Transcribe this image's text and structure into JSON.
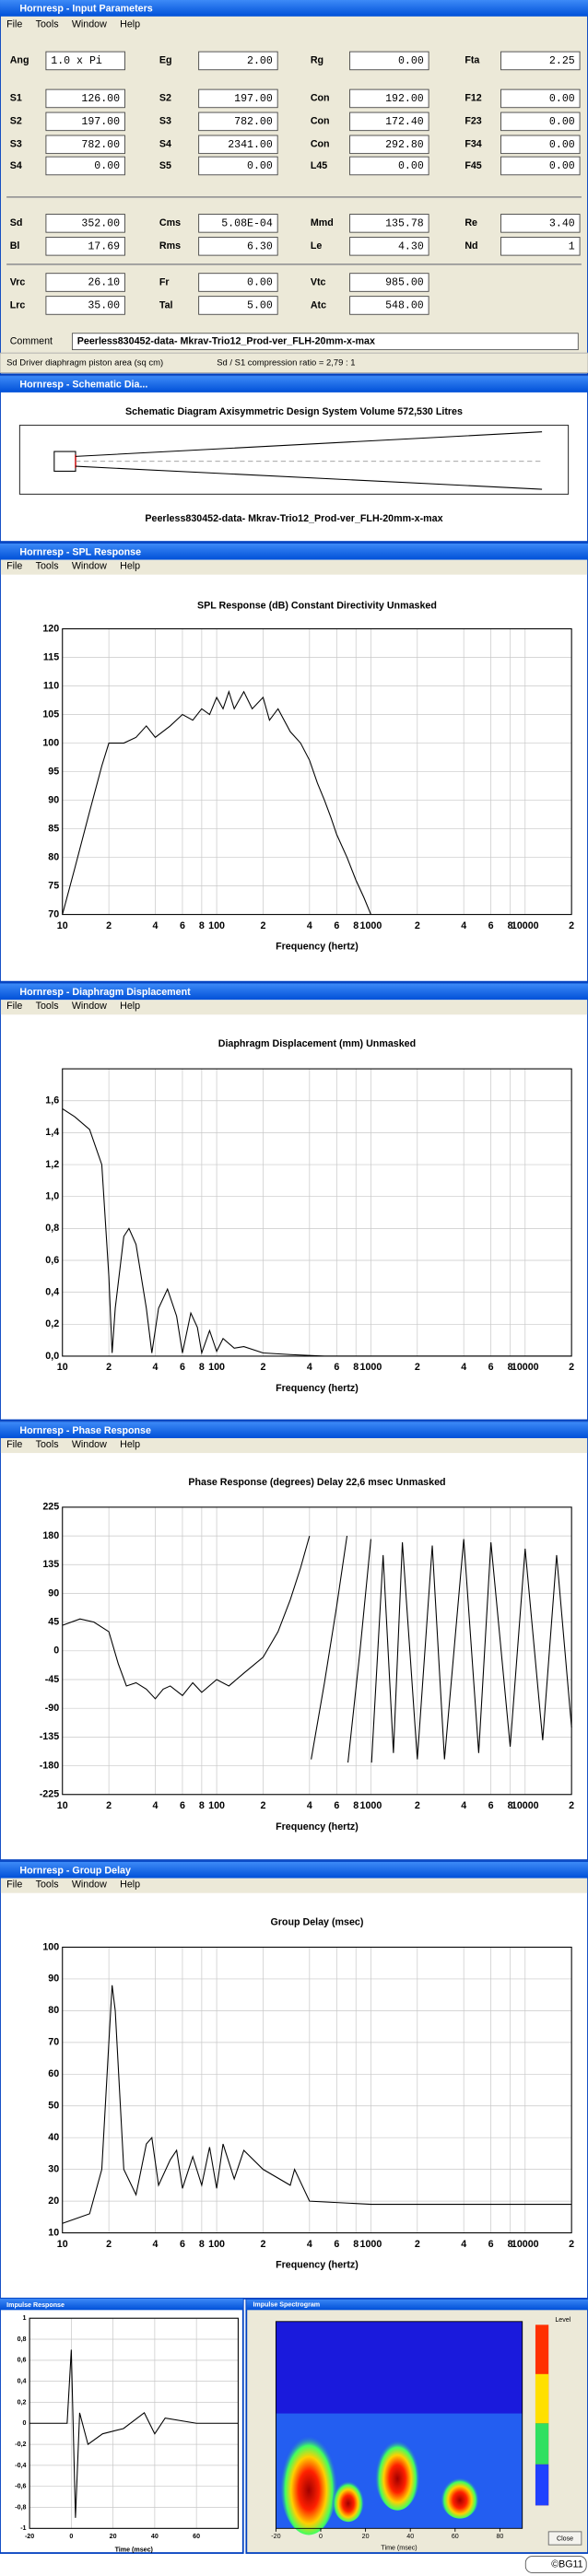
{
  "input_window": {
    "title": "Hornresp - Input Parameters",
    "menu": [
      "File",
      "Tools",
      "Window",
      "Help"
    ],
    "rows": [
      [
        {
          "label": "Ang",
          "value": "1.0 x Pi"
        },
        {
          "label": "Eg",
          "value": "2.00"
        },
        {
          "label": "Rg",
          "value": "0.00"
        },
        {
          "label": "Fta",
          "value": "2.25"
        }
      ],
      [
        {
          "label": "S1",
          "value": "126.00"
        },
        {
          "label": "S2",
          "value": "197.00"
        },
        {
          "label": "Con",
          "value": "192.00"
        },
        {
          "label": "F12",
          "value": "0.00"
        }
      ],
      [
        {
          "label": "S2",
          "value": "197.00"
        },
        {
          "label": "S3",
          "value": "782.00"
        },
        {
          "label": "Con",
          "value": "172.40"
        },
        {
          "label": "F23",
          "value": "0.00"
        }
      ],
      [
        {
          "label": "S3",
          "value": "782.00"
        },
        {
          "label": "S4",
          "value": "2341.00"
        },
        {
          "label": "Con",
          "value": "292.80"
        },
        {
          "label": "F34",
          "value": "0.00"
        }
      ],
      [
        {
          "label": "S4",
          "value": "0.00"
        },
        {
          "label": "S5",
          "value": "0.00"
        },
        {
          "label": "L45",
          "value": "0.00"
        },
        {
          "label": "F45",
          "value": "0.00"
        }
      ],
      [
        {
          "label": "Sd",
          "value": "352.00"
        },
        {
          "label": "Cms",
          "value": "5.08E-04"
        },
        {
          "label": "Mmd",
          "value": "135.78"
        },
        {
          "label": "Re",
          "value": "3.40"
        }
      ],
      [
        {
          "label": "Bl",
          "value": "17.69"
        },
        {
          "label": "Rms",
          "value": "6.30"
        },
        {
          "label": "Le",
          "value": "4.30"
        },
        {
          "label": "Nd",
          "value": "1"
        }
      ],
      [
        {
          "label": "Vrc",
          "value": "26.10"
        },
        {
          "label": "Fr",
          "value": "0.00"
        },
        {
          "label": "Vtc",
          "value": "985.00"
        }
      ],
      [
        {
          "label": "Lrc",
          "value": "35.00"
        },
        {
          "label": "Tal",
          "value": "5.00"
        },
        {
          "label": "Atc",
          "value": "548.00"
        }
      ]
    ],
    "comment_label": "Comment",
    "comment": "Peerless830452-data- Mkrav-Trio12_Prod-ver_FLH-20mm-x-max",
    "status_hint": "Sd   Driver diaphragm piston area (sq cm)",
    "status_ratio": "Sd / S1 compression ratio = 2,79 : 1"
  },
  "schematic_window": {
    "title": "Hornresp - Schematic Dia...",
    "heading": "Schematic Diagram   Axisymmetric Design   System Volume 572,530 Litres",
    "caption": "Peerless830452-data- Mkrav-Trio12_Prod-ver_FLH-20mm-x-max"
  },
  "chart_data": [
    {
      "type": "line",
      "window_title": "Hornresp - SPL Response",
      "menu": [
        "File",
        "Tools",
        "Window",
        "Help"
      ],
      "title": "SPL Response (dB)   Constant Directivity   Unmasked",
      "x_label": "Frequency (hertz)",
      "log_x": true,
      "grid": true,
      "color": "#000000",
      "xlim": [
        10,
        20000
      ],
      "ylim": [
        70,
        120
      ],
      "xticks": [
        10,
        {
          "value": 20,
          "label": "2"
        },
        {
          "value": 40,
          "label": "4"
        },
        {
          "value": 60,
          "label": "6"
        },
        {
          "value": 80,
          "label": "8"
        },
        100,
        {
          "value": 200,
          "label": "2"
        },
        {
          "value": 400,
          "label": "4"
        },
        {
          "value": 600,
          "label": "6"
        },
        {
          "value": 800,
          "label": "8"
        },
        1000,
        {
          "value": 2000,
          "label": "2"
        },
        {
          "value": 4000,
          "label": "4"
        },
        {
          "value": 6000,
          "label": "6"
        },
        {
          "value": 8000,
          "label": "8"
        },
        10000,
        {
          "value": 20000,
          "label": "2"
        }
      ],
      "yticks": [
        70,
        75,
        80,
        85,
        90,
        95,
        100,
        105,
        110,
        115,
        120
      ],
      "x": [
        10,
        12,
        15,
        18,
        20,
        25,
        30,
        35,
        40,
        50,
        60,
        70,
        80,
        90,
        100,
        110,
        120,
        130,
        150,
        170,
        200,
        220,
        250,
        300,
        350,
        400,
        450,
        500,
        550,
        600,
        700,
        800,
        900,
        1000
      ],
      "values": [
        70,
        78,
        88,
        96,
        100,
        100,
        101,
        103,
        101,
        103,
        105,
        104,
        106,
        105,
        108,
        106,
        109,
        106,
        109,
        106,
        108,
        104,
        106,
        102,
        100,
        97,
        93,
        90,
        87,
        84,
        80,
        76,
        73,
        70
      ]
    },
    {
      "type": "line",
      "window_title": "Hornresp - Diaphragm Displacement",
      "menu": [
        "File",
        "Tools",
        "Window",
        "Help"
      ],
      "title": "Diaphragm Displacement (mm)   Unmasked",
      "x_label": "Frequency (hertz)",
      "log_x": true,
      "grid": true,
      "color": "#000000",
      "xlim": [
        10,
        20000
      ],
      "ylim": [
        0,
        1.8
      ],
      "xticks": [
        10,
        {
          "value": 20,
          "label": "2"
        },
        {
          "value": 40,
          "label": "4"
        },
        {
          "value": 60,
          "label": "6"
        },
        {
          "value": 80,
          "label": "8"
        },
        100,
        {
          "value": 200,
          "label": "2"
        },
        {
          "value": 400,
          "label": "4"
        },
        {
          "value": 600,
          "label": "6"
        },
        {
          "value": 800,
          "label": "8"
        },
        1000,
        {
          "value": 2000,
          "label": "2"
        },
        {
          "value": 4000,
          "label": "4"
        },
        {
          "value": 6000,
          "label": "6"
        },
        {
          "value": 8000,
          "label": "8"
        },
        10000,
        {
          "value": 20000,
          "label": "2"
        }
      ],
      "yticks": [
        {
          "value": 0,
          "label": "0,0"
        },
        {
          "value": 0.2,
          "label": "0,2"
        },
        {
          "value": 0.4,
          "label": "0,4"
        },
        {
          "value": 0.6,
          "label": "0,6"
        },
        {
          "value": 0.8,
          "label": "0,8"
        },
        {
          "value": 1,
          "label": "1,0"
        },
        {
          "value": 1.2,
          "label": "1,2"
        },
        {
          "value": 1.4,
          "label": "1,4"
        },
        {
          "value": 1.6,
          "label": "1,6"
        }
      ],
      "x": [
        10,
        12,
        15,
        18,
        20,
        21,
        22,
        25,
        27,
        30,
        35,
        38,
        42,
        48,
        55,
        60,
        68,
        75,
        80,
        90,
        100,
        110,
        130,
        150,
        200,
        300,
        500,
        1000,
        20000
      ],
      "values": [
        1.55,
        1.5,
        1.42,
        1.2,
        0.5,
        0.02,
        0.3,
        0.75,
        0.8,
        0.7,
        0.3,
        0.02,
        0.3,
        0.42,
        0.25,
        0.02,
        0.27,
        0.18,
        0.02,
        0.16,
        0.03,
        0.11,
        0.05,
        0.06,
        0.02,
        0.01,
        0,
        0,
        0
      ]
    },
    {
      "type": "line",
      "window_title": "Hornresp - Phase Response",
      "menu": [
        "File",
        "Tools",
        "Window",
        "Help"
      ],
      "title": "Phase Response (degrees)   Delay 22,6 msec   Unmasked",
      "x_label": "Frequency (hertz)",
      "log_x": true,
      "grid": true,
      "color": "#000000",
      "xlim": [
        10,
        20000
      ],
      "ylim": [
        -225,
        225
      ],
      "xticks": [
        10,
        {
          "value": 20,
          "label": "2"
        },
        {
          "value": 40,
          "label": "4"
        },
        {
          "value": 60,
          "label": "6"
        },
        {
          "value": 80,
          "label": "8"
        },
        100,
        {
          "value": 200,
          "label": "2"
        },
        {
          "value": 400,
          "label": "4"
        },
        {
          "value": 600,
          "label": "6"
        },
        {
          "value": 800,
          "label": "8"
        },
        1000,
        {
          "value": 2000,
          "label": "2"
        },
        {
          "value": 4000,
          "label": "4"
        },
        {
          "value": 6000,
          "label": "6"
        },
        {
          "value": 8000,
          "label": "8"
        },
        10000,
        {
          "value": 20000,
          "label": "2"
        }
      ],
      "yticks": [
        -225,
        -180,
        -135,
        -90,
        -45,
        0,
        45,
        90,
        135,
        180,
        225
      ],
      "x": [
        10,
        13,
        16,
        20,
        23,
        26,
        30,
        35,
        40,
        45,
        50,
        60,
        70,
        80,
        100,
        120,
        150,
        200,
        250,
        300,
        350,
        400,
        405,
        410,
        500,
        600,
        700,
        705,
        710,
        850,
        1000,
        1005,
        1010,
        1200,
        1400,
        1600,
        2000,
        2500,
        3000,
        4000,
        5000,
        6000,
        8000,
        10000,
        13000,
        16000,
        20000
      ],
      "values": [
        40,
        50,
        45,
        30,
        -20,
        -55,
        -50,
        -60,
        -75,
        -60,
        -55,
        -70,
        -50,
        -65,
        -45,
        -55,
        -35,
        -10,
        30,
        80,
        130,
        180,
        null,
        -170,
        -50,
        70,
        180,
        null,
        -175,
        0,
        175,
        null,
        -175,
        150,
        -160,
        170,
        -170,
        165,
        -170,
        175,
        -160,
        170,
        -150,
        160,
        -140,
        150,
        -120
      ]
    },
    {
      "type": "line",
      "window_title": "Hornresp - Group Delay",
      "menu": [
        "File",
        "Tools",
        "Window",
        "Help"
      ],
      "title": "Group Delay (msec)",
      "x_label": "Frequency (hertz)",
      "log_x": true,
      "grid": true,
      "color": "#000000",
      "xlim": [
        10,
        20000
      ],
      "ylim": [
        10,
        100
      ],
      "xticks": [
        10,
        {
          "value": 20,
          "label": "2"
        },
        {
          "value": 40,
          "label": "4"
        },
        {
          "value": 60,
          "label": "6"
        },
        {
          "value": 80,
          "label": "8"
        },
        100,
        {
          "value": 200,
          "label": "2"
        },
        {
          "value": 400,
          "label": "4"
        },
        {
          "value": 600,
          "label": "6"
        },
        {
          "value": 800,
          "label": "8"
        },
        1000,
        {
          "value": 2000,
          "label": "2"
        },
        {
          "value": 4000,
          "label": "4"
        },
        {
          "value": 6000,
          "label": "6"
        },
        {
          "value": 8000,
          "label": "8"
        },
        10000,
        {
          "value": 20000,
          "label": "2"
        }
      ],
      "yticks": [
        10,
        20,
        30,
        40,
        50,
        60,
        70,
        80,
        90,
        100
      ],
      "x": [
        10,
        15,
        18,
        20,
        21,
        22,
        25,
        30,
        35,
        38,
        42,
        50,
        55,
        60,
        70,
        80,
        90,
        100,
        110,
        130,
        150,
        200,
        300,
        320,
        400,
        1000,
        20000
      ],
      "values": [
        13,
        16,
        30,
        70,
        88,
        80,
        30,
        22,
        38,
        40,
        25,
        33,
        36,
        24,
        34,
        25,
        37,
        24,
        38,
        27,
        36,
        30,
        25,
        30,
        20,
        19,
        19
      ]
    },
    {
      "type": "line",
      "window_title": "Impulse Response",
      "x_label": "Time (msec)",
      "log_x": false,
      "grid": true,
      "color": "#000000",
      "tick_color": "#cc0000",
      "xlim": [
        -20,
        80
      ],
      "ylim": [
        -1,
        1
      ],
      "xticks": [
        -20,
        0,
        20,
        40,
        60
      ],
      "yticks": [
        -1,
        {
          "value": -0.8,
          "label": "-0,8"
        },
        {
          "value": -0.6,
          "label": "-0,6"
        },
        {
          "value": -0.4,
          "label": "-0,4"
        },
        {
          "value": -0.2,
          "label": "-0,2"
        },
        0,
        {
          "value": 0.2,
          "label": "0,2"
        },
        {
          "value": 0.4,
          "label": "0,4"
        },
        {
          "value": 0.6,
          "label": "0,6"
        },
        {
          "value": 0.8,
          "label": "0,8"
        },
        1
      ],
      "x": [
        -20,
        -2,
        0,
        2,
        4,
        8,
        15,
        25,
        35,
        40,
        45,
        60,
        80
      ],
      "values": [
        0,
        0,
        0.7,
        -0.9,
        0.1,
        -0.2,
        -0.1,
        -0.05,
        0.1,
        -0.1,
        0.05,
        0,
        0
      ]
    }
  ],
  "spectrogram_window": {
    "title": "Impulse Spectrogram",
    "x_label": "Time (msec)",
    "level_label": "Level",
    "button": "Close",
    "xlim": [
      -20,
      90
    ],
    "xticks": [
      -20,
      0,
      20,
      40,
      60,
      80
    ]
  },
  "stamp": "©BG11"
}
